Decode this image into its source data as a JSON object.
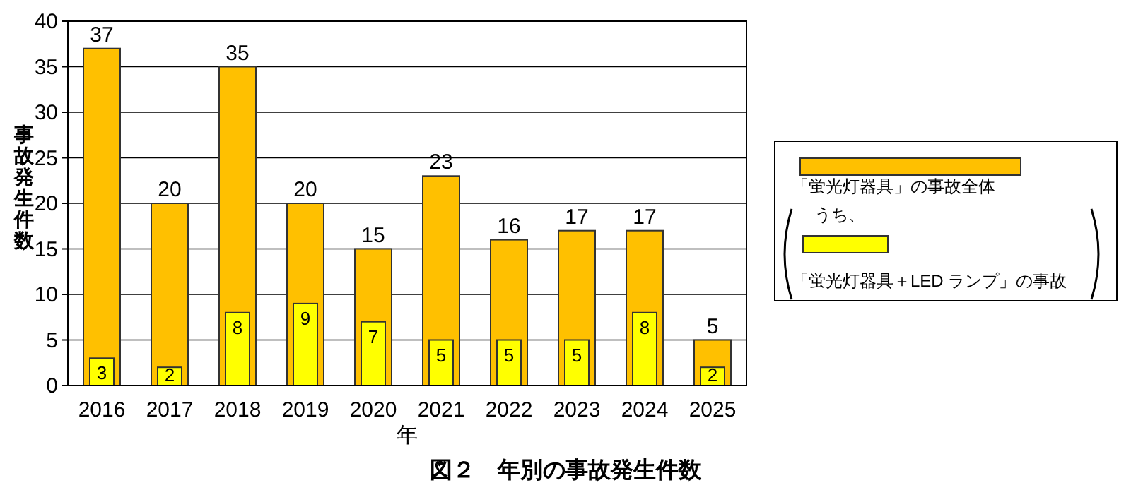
{
  "chart_data": {
    "type": "bar",
    "title": "図２　年別の事故発生件数",
    "xlabel": "年",
    "ylabel": "事故発生件数",
    "categories": [
      "2016",
      "2017",
      "2018",
      "2019",
      "2020",
      "2021",
      "2022",
      "2023",
      "2024",
      "2025"
    ],
    "series": [
      {
        "name": "「蛍光灯器具」の事故全体",
        "color": "#ffc000",
        "values": [
          37,
          20,
          35,
          20,
          15,
          23,
          16,
          17,
          17,
          5
        ]
      },
      {
        "name": "「蛍光灯器具＋LED ランプ」の事故",
        "color": "#ffff00",
        "values": [
          3,
          2,
          8,
          9,
          7,
          5,
          5,
          5,
          8,
          2
        ]
      }
    ],
    "ylim": [
      0,
      40
    ],
    "yticks": [
      0,
      5,
      10,
      15,
      20,
      25,
      30,
      35,
      40
    ],
    "grid": "y",
    "legend": "right",
    "data_labels": true,
    "annotations": [
      "うち、"
    ]
  }
}
